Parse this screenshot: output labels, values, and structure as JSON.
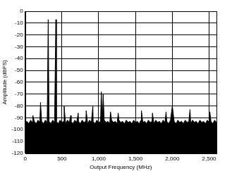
{
  "chart_data": {
    "type": "line",
    "x_label": "Output Frequency (MHz)",
    "y_label": "Amplitude (dBFS)",
    "x": [
      0,
      25,
      50,
      75,
      100,
      105,
      125,
      150,
      175,
      200,
      209,
      225,
      250,
      275,
      300,
      314,
      325,
      350,
      375,
      400,
      418,
      425,
      450,
      475,
      500,
      525,
      530,
      550,
      575,
      600,
      620,
      625,
      650,
      675,
      700,
      722,
      725,
      750,
      775,
      800,
      825,
      830,
      850,
      875,
      900,
      920,
      925,
      950,
      975,
      1000,
      1025,
      1035,
      1050,
      1060,
      1075,
      1100,
      1125,
      1150,
      1160,
      1175,
      1200,
      1225,
      1250,
      1265,
      1275,
      1300,
      1325,
      1350,
      1375,
      1400,
      1425,
      1450,
      1475,
      1500,
      1525,
      1550,
      1575,
      1580,
      1600,
      1625,
      1650,
      1675,
      1700,
      1725,
      1730,
      1750,
      1775,
      1800,
      1825,
      1850,
      1875,
      1900,
      1915,
      1925,
      1950,
      1975,
      2000,
      2025,
      2050,
      2075,
      2100,
      2125,
      2150,
      2175,
      2200,
      2225,
      2240,
      2250,
      2275,
      2300,
      2325,
      2350,
      2375,
      2400,
      2425,
      2450,
      2475,
      2500,
      2510,
      2525,
      2550,
      2575,
      2600
    ],
    "values": [
      -94,
      -93,
      -95,
      -92,
      -94,
      -88,
      -93,
      -95,
      -92,
      -94,
      -77,
      -93,
      -95,
      -92,
      -94,
      -7,
      -93,
      -95,
      -92,
      -94,
      -7,
      -93,
      -95,
      -92,
      -94,
      -93,
      -80,
      -95,
      -92,
      -94,
      -88,
      -93,
      -95,
      -92,
      -94,
      -86,
      -93,
      -95,
      -92,
      -94,
      -93,
      -84,
      -95,
      -92,
      -94,
      -80,
      -93,
      -95,
      -92,
      -94,
      -93,
      -68,
      -95,
      -70,
      -92,
      -94,
      -93,
      -95,
      -85,
      -92,
      -94,
      -93,
      -95,
      -86,
      -92,
      -94,
      -93,
      -95,
      -92,
      -94,
      -93,
      -95,
      -92,
      -94,
      -93,
      -95,
      -92,
      -84,
      -94,
      -93,
      -95,
      -92,
      -94,
      -93,
      -86,
      -95,
      -92,
      -94,
      -93,
      -95,
      -92,
      -94,
      -85,
      -93,
      -95,
      -92,
      -80,
      -93,
      -95,
      -92,
      -94,
      -93,
      -95,
      -92,
      -94,
      -93,
      -83,
      -95,
      -92,
      -94,
      -93,
      -95,
      -92,
      -94,
      -93,
      -95,
      -92,
      -94,
      -85,
      -93,
      -95,
      -92,
      -94
    ],
    "color": "#000000",
    "xlim": [
      0,
      2600
    ],
    "xticks": [
      0,
      500,
      1000,
      1500,
      2000,
      2500
    ],
    "ylim": [
      -120,
      0
    ],
    "yticks": [
      -120,
      -110,
      -100,
      -90,
      -80,
      -70,
      -60,
      -50,
      -40,
      -30,
      -20,
      -10,
      0
    ],
    "grid": true
  }
}
